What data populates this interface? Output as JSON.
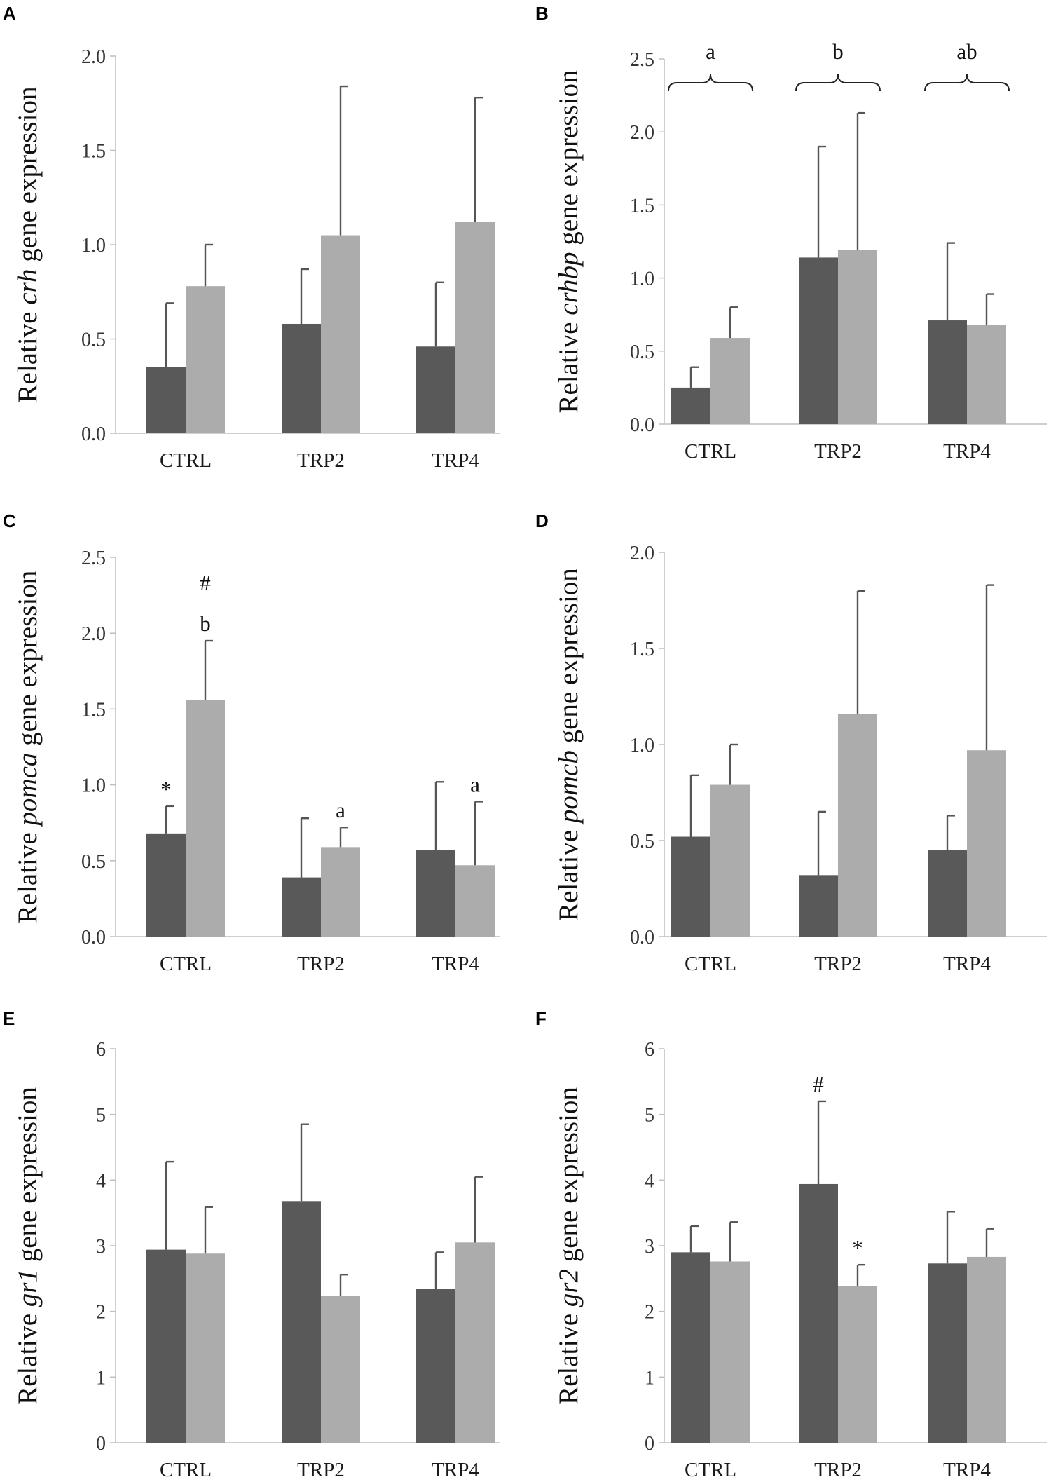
{
  "colors": {
    "series1": "#595959",
    "series2": "#acacac"
  },
  "chart_data": [
    {
      "panel": "A",
      "type": "bar",
      "ylabel_prefix": "Relative ",
      "gene": "crh",
      "ylabel_suffix": " gene expression",
      "ylim": [
        0,
        2.0
      ],
      "ytick_step": 0.5,
      "ytick_decimals": 1,
      "categories": [
        "CTRL",
        "TRP2",
        "TRP4"
      ],
      "series": [
        {
          "name": "series 1",
          "values": [
            0.35,
            0.58,
            0.46
          ],
          "errors": [
            0.34,
            0.29,
            0.34
          ]
        },
        {
          "name": "series 2",
          "values": [
            0.78,
            1.05,
            1.12
          ],
          "errors": [
            0.22,
            0.79,
            0.66
          ]
        }
      ],
      "annotations": [],
      "braces": []
    },
    {
      "panel": "B",
      "type": "bar",
      "ylabel_prefix": "Relative ",
      "gene": "crhbp",
      "ylabel_suffix": " gene expression",
      "ylim": [
        0,
        2.5
      ],
      "ytick_step": 0.5,
      "ytick_decimals": 1,
      "categories": [
        "CTRL",
        "TRP2",
        "TRP4"
      ],
      "series": [
        {
          "name": "series 1",
          "values": [
            0.25,
            1.14,
            0.71
          ],
          "errors": [
            0.14,
            0.76,
            0.53
          ]
        },
        {
          "name": "series 2",
          "values": [
            0.59,
            1.19,
            0.68
          ],
          "errors": [
            0.21,
            0.94,
            0.21
          ]
        }
      ],
      "annotations": [],
      "braces": [
        {
          "category": 0,
          "label": "a"
        },
        {
          "category": 1,
          "label": "b"
        },
        {
          "category": 2,
          "label": "ab"
        }
      ]
    },
    {
      "panel": "C",
      "type": "bar",
      "ylabel_prefix": "Relative ",
      "gene": "pomca",
      "ylabel_suffix": " gene expression",
      "ylim": [
        0,
        2.5
      ],
      "ytick_step": 0.5,
      "ytick_decimals": 1,
      "categories": [
        "CTRL",
        "TRP2",
        "TRP4"
      ],
      "series": [
        {
          "name": "series 1",
          "values": [
            0.68,
            0.39,
            0.57
          ],
          "errors": [
            0.18,
            0.39,
            0.45
          ]
        },
        {
          "name": "series 2",
          "values": [
            1.56,
            0.59,
            0.47
          ],
          "errors": [
            0.39,
            0.13,
            0.42
          ]
        }
      ],
      "annotations": [
        {
          "category": 0,
          "series": 0,
          "lines": [
            "*"
          ]
        },
        {
          "category": 0,
          "series": 1,
          "lines": [
            "#",
            "b"
          ]
        },
        {
          "category": 1,
          "series": 1,
          "lines": [
            "a"
          ]
        },
        {
          "category": 2,
          "series": 1,
          "lines": [
            "a"
          ]
        }
      ],
      "braces": []
    },
    {
      "panel": "D",
      "type": "bar",
      "ylabel_prefix": "Relative ",
      "gene": "pomcb",
      "ylabel_suffix": " gene expression",
      "ylim": [
        0,
        2.0
      ],
      "ytick_step": 0.5,
      "ytick_decimals": 1,
      "categories": [
        "CTRL",
        "TRP2",
        "TRP4"
      ],
      "series": [
        {
          "name": "series 1",
          "values": [
            0.52,
            0.32,
            0.45
          ],
          "errors": [
            0.32,
            0.33,
            0.18
          ]
        },
        {
          "name": "series 2",
          "values": [
            0.79,
            1.16,
            0.97
          ],
          "errors": [
            0.21,
            0.64,
            0.86
          ]
        }
      ],
      "annotations": [],
      "braces": []
    },
    {
      "panel": "E",
      "type": "bar",
      "ylabel_prefix": "Relative ",
      "gene": "gr1",
      "ylabel_suffix": " gene expression",
      "ylim": [
        0,
        6
      ],
      "ytick_step": 1,
      "ytick_decimals": 0,
      "categories": [
        "CTRL",
        "TRP2",
        "TRP4"
      ],
      "series": [
        {
          "name": "series 1",
          "values": [
            2.94,
            3.68,
            2.34
          ],
          "errors": [
            1.34,
            1.17,
            0.56
          ]
        },
        {
          "name": "series 2",
          "values": [
            2.88,
            2.24,
            3.05
          ],
          "errors": [
            0.71,
            0.32,
            1.0
          ]
        }
      ],
      "annotations": [],
      "braces": []
    },
    {
      "panel": "F",
      "type": "bar",
      "ylabel_prefix": "Relative ",
      "gene": "gr2",
      "ylabel_suffix": " gene expression",
      "ylim": [
        0,
        6
      ],
      "ytick_step": 1,
      "ytick_decimals": 0,
      "categories": [
        "CTRL",
        "TRP2",
        "TRP4"
      ],
      "series": [
        {
          "name": "series 1",
          "values": [
            2.9,
            3.94,
            2.73
          ],
          "errors": [
            0.4,
            1.26,
            0.79
          ]
        },
        {
          "name": "series 2",
          "values": [
            2.76,
            2.39,
            2.83
          ],
          "errors": [
            0.6,
            0.32,
            0.43
          ]
        }
      ],
      "annotations": [
        {
          "category": 1,
          "series": 0,
          "lines": [
            "#"
          ]
        },
        {
          "category": 1,
          "series": 1,
          "lines": [
            "*"
          ]
        }
      ],
      "braces": []
    }
  ]
}
